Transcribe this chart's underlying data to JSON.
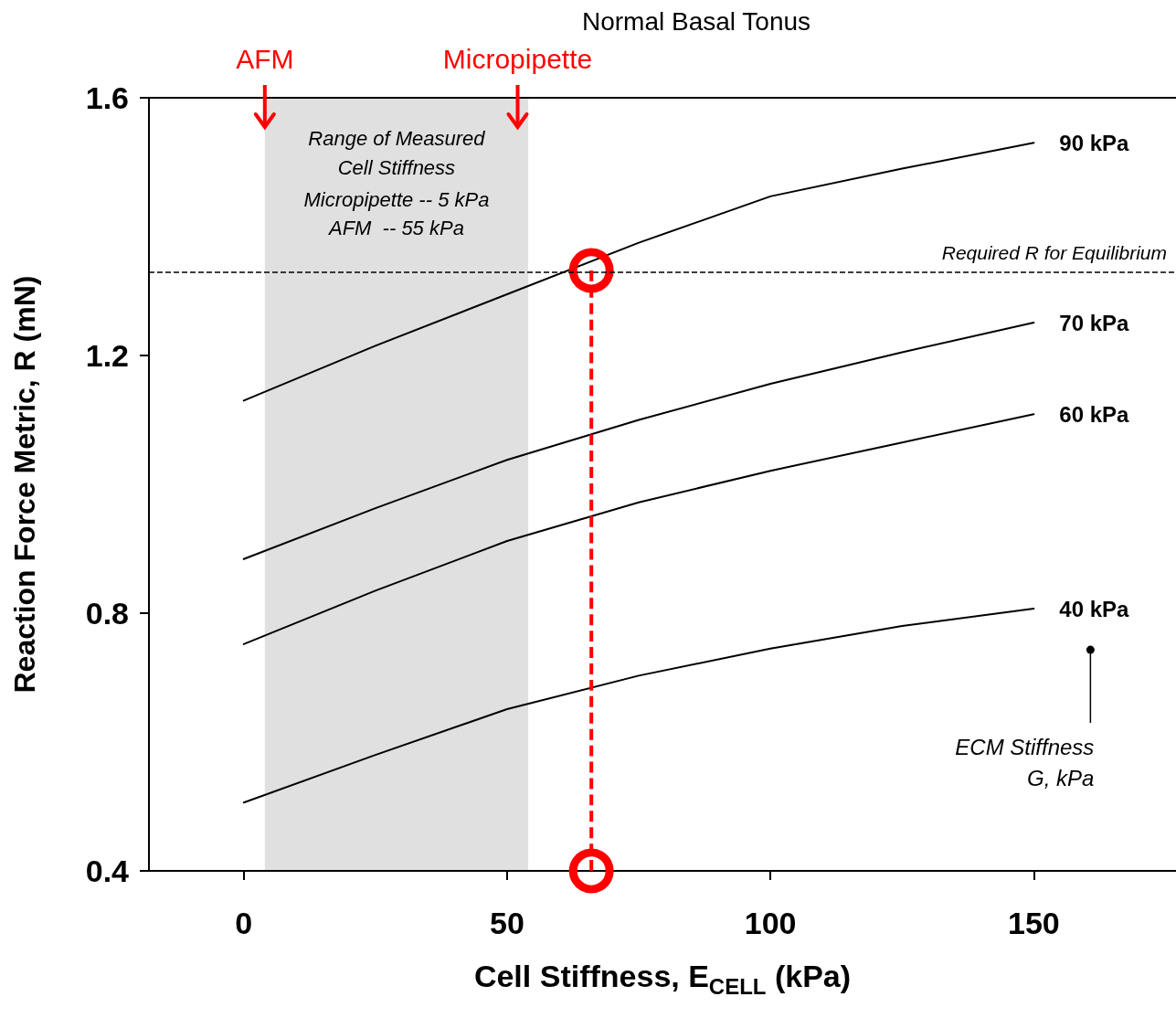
{
  "chart_data": {
    "type": "line",
    "title": "Normal Basal Tonus",
    "xlabel": "Cell Stiffness, E$_{CELL}$ (kPa)",
    "ylabel": "Reaction Force Metric, R (mN)",
    "xlim": [
      -18,
      177
    ],
    "xticks": [
      0,
      50,
      100,
      150
    ],
    "ylim": [
      0.4,
      1.6
    ],
    "yticks": [
      0.4,
      0.8,
      1.2,
      1.6
    ],
    "x": [
      0,
      25,
      50,
      75,
      100,
      125,
      150
    ],
    "series": [
      {
        "name": "90 kPa",
        "color": "#000000",
        "values": [
          1.13,
          1.215,
          1.295,
          1.375,
          1.447,
          1.49,
          1.53
        ]
      },
      {
        "name": "70 kPa",
        "color": "#000000",
        "values": [
          0.884,
          0.963,
          1.038,
          1.1,
          1.156,
          1.205,
          1.251
        ]
      },
      {
        "name": "60 kPa",
        "color": "#000000",
        "values": [
          0.752,
          0.835,
          0.912,
          0.972,
          1.021,
          1.065,
          1.109
        ]
      },
      {
        "name": "40 kPa",
        "color": "#000000",
        "values": [
          0.506,
          0.58,
          0.651,
          0.703,
          0.745,
          0.78,
          0.807
        ]
      },
      {
        "type": "line",
        "color": "#ff0000",
        "x": [
          66,
          66
        ],
        "values": [
          0.4,
          1.332
        ],
        "marker": "circle",
        "line_style": "dashed"
      }
    ],
    "marker": "none",
    "line_style": "solid",
    "grid": false,
    "legend": false,
    "ref_lines": [
      {
        "axis": "y",
        "value": 1.332,
        "label": "Required R for Equilibrium",
        "color": "#000000",
        "line_style": "dashed"
      }
    ],
    "bands": [
      {
        "axis": "x",
        "from": 4,
        "to": 54,
        "label": "Range of Measured\nCell Stiffness",
        "color": "#e0e0e0"
      }
    ],
    "annotations": [
      {
        "text": "AFM",
        "x": 4,
        "y": 1.6
      },
      {
        "text": "Micropipette",
        "x": 52,
        "y": 1.6
      },
      "Micropipette -- 5 kPa\nAFM  -- 55 kPa",
      "ECM Stiffness\nG, kPa"
    ]
  }
}
